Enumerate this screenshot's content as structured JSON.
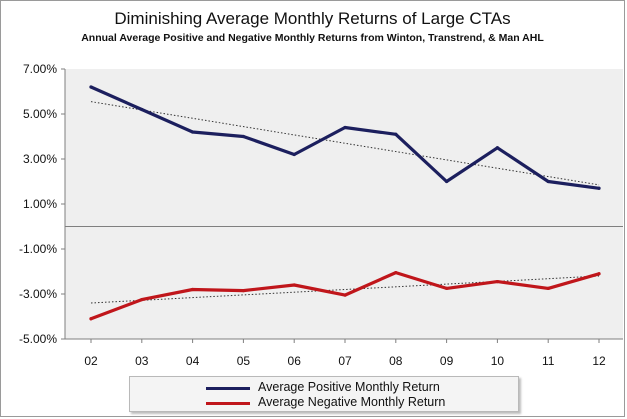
{
  "chart_data": {
    "type": "line",
    "title": "Diminishing Average Monthly Returns of Large CTAs",
    "subtitle": "Annual Average Positive and Negative Monthly Returns from Winton, Transtrend, & Man AHL",
    "categories": [
      "02",
      "03",
      "04",
      "05",
      "06",
      "07",
      "08",
      "09",
      "10",
      "11",
      "12"
    ],
    "y_ticks": [
      {
        "value": 7,
        "label": "7.00%"
      },
      {
        "value": 5,
        "label": "5.00%"
      },
      {
        "value": 3,
        "label": "3.00%"
      },
      {
        "value": 1,
        "label": "1.00%"
      },
      {
        "value": -1,
        "label": "-1.00%"
      },
      {
        "value": -3,
        "label": "-3.00%"
      },
      {
        "value": -5,
        "label": "-5.00%"
      }
    ],
    "ylim": [
      -5,
      7
    ],
    "grid": false,
    "legend_position": "bottom",
    "series": [
      {
        "name": "Average Positive Monthly Return",
        "color": "#1c1f5e",
        "values": [
          6.2,
          5.2,
          4.2,
          4.0,
          3.2,
          4.4,
          4.1,
          2.0,
          3.5,
          2.0,
          1.7
        ],
        "trendline": [
          5.55,
          1.85
        ]
      },
      {
        "name": "Average Negative Monthly Return",
        "color": "#c0161b",
        "values": [
          -4.1,
          -3.25,
          -2.8,
          -2.85,
          -2.6,
          -3.05,
          -2.05,
          -2.75,
          -2.45,
          -2.75,
          -2.1
        ],
        "trendline": [
          -3.4,
          -2.2
        ]
      }
    ]
  }
}
